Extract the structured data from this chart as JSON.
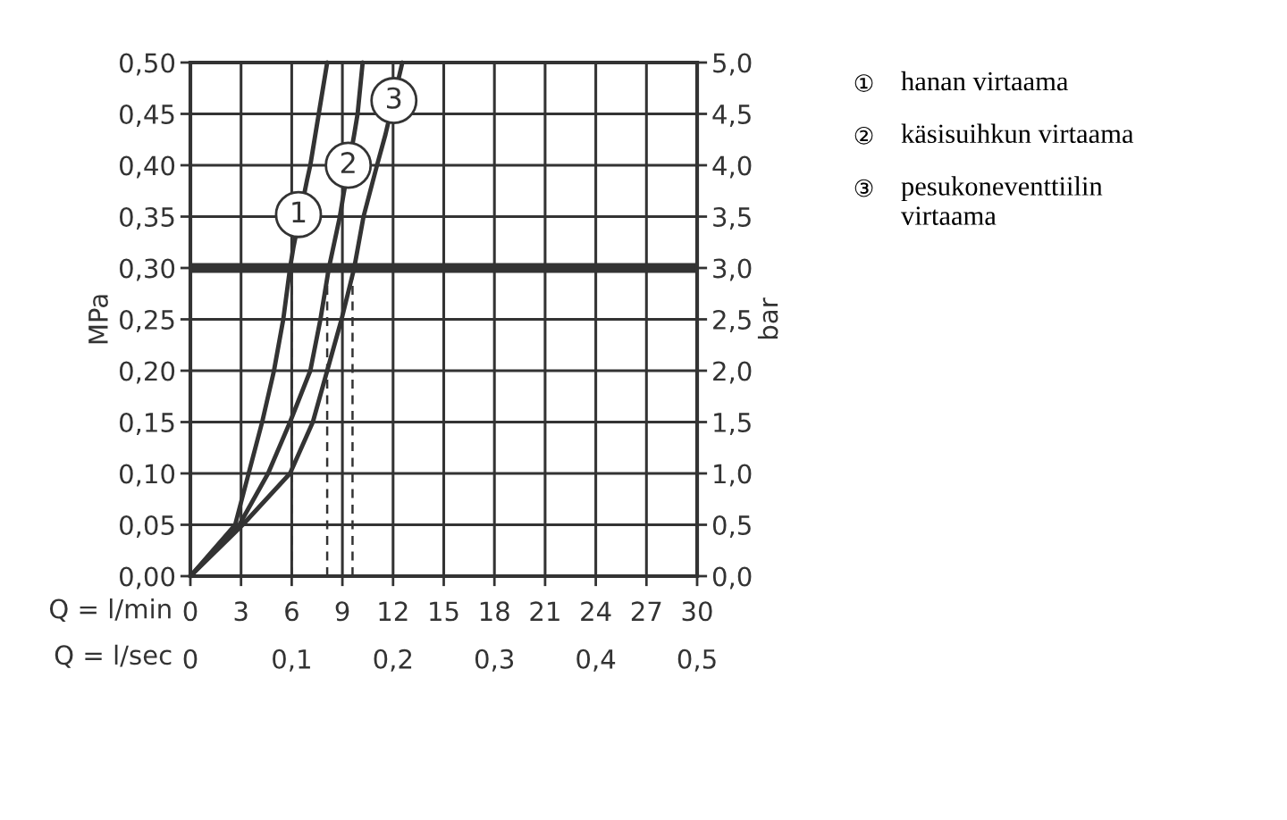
{
  "chart_data": {
    "type": "line",
    "series": [
      {
        "color": "#333333",
        "x": [
          0,
          2.65,
          3.45,
          4.25,
          4.95,
          5.5,
          5.9,
          6.1,
          6.9,
          7.1,
          7.6,
          8.1
        ],
        "values": [
          0,
          0.05,
          0.1,
          0.15,
          0.2,
          0.25,
          0.3,
          0.32,
          0.385,
          0.4,
          0.45,
          0.5
        ]
      },
      {
        "color": "#333333",
        "x": [
          0,
          2.9,
          4.6,
          5.9,
          7.1,
          7.7,
          8.2,
          8.85,
          9.05,
          9.7,
          9.9,
          10.2
        ],
        "values": [
          0,
          0.05,
          0.1,
          0.15,
          0.2,
          0.25,
          0.3,
          0.35,
          0.37,
          0.43,
          0.45,
          0.5
        ]
      },
      {
        "color": "#333333",
        "x": [
          0,
          3.1,
          5.9,
          7.25,
          8.1,
          8.95,
          9.7,
          10.25,
          11.05,
          11.55,
          12.55
        ],
        "values": [
          0,
          0.05,
          0.1,
          0.15,
          0.2,
          0.25,
          0.3,
          0.35,
          0.4,
          0.43,
          0.5
        ]
      },
      {
        "color": "#333333",
        "line_style": "dashed",
        "x": [
          6,
          6
        ],
        "values": [
          0,
          0.3
        ]
      },
      {
        "color": "#333333",
        "line_style": "dashed",
        "x": [
          8.1,
          8.1
        ],
        "values": [
          0,
          0.3
        ]
      },
      {
        "color": "#333333",
        "line_style": "dashed",
        "x": [
          9.6,
          9.6
        ],
        "values": [
          0,
          0.3
        ]
      }
    ],
    "xlim": [
      0,
      30
    ],
    "xticks": [
      0,
      3,
      6,
      9,
      12,
      15,
      18,
      21,
      24,
      27,
      30
    ],
    "xlabel": "Q = l/min",
    "x2lim": [
      0,
      0.5
    ],
    "x2ticks": [
      {
        "value": 0,
        "label": "0"
      },
      {
        "value": 0.1,
        "label": "0,1"
      },
      {
        "value": 0.2,
        "label": "0,2"
      },
      {
        "value": 0.3,
        "label": "0,3"
      },
      {
        "value": 0.4,
        "label": "0,4"
      },
      {
        "value": 0.5,
        "label": "0,5"
      }
    ],
    "x2label": "Q = l/sec",
    "ylim": [
      0,
      0.5
    ],
    "yticks": [
      {
        "value": 0,
        "label": "0,00"
      },
      {
        "value": 0.05,
        "label": "0,05"
      },
      {
        "value": 0.1,
        "label": "0,10"
      },
      {
        "value": 0.15,
        "label": "0,15"
      },
      {
        "value": 0.2,
        "label": "0,20"
      },
      {
        "value": 0.25,
        "label": "0,25"
      },
      {
        "value": 0.3,
        "label": "0,30"
      },
      {
        "value": 0.35,
        "label": "0,35"
      },
      {
        "value": 0.4,
        "label": "0,40"
      },
      {
        "value": 0.45,
        "label": "0,45"
      },
      {
        "value": 0.5,
        "label": "0,50"
      }
    ],
    "ylabel": "MPa",
    "y2lim": [
      0,
      5
    ],
    "y2ticks": [
      {
        "value": 0,
        "label": "0,0"
      },
      {
        "value": 0.5,
        "label": "0,5"
      },
      {
        "value": 1,
        "label": "1,0"
      },
      {
        "value": 1.5,
        "label": "1,5"
      },
      {
        "value": 2,
        "label": "2,0"
      },
      {
        "value": 2.5,
        "label": "2,5"
      },
      {
        "value": 3,
        "label": "3,0"
      },
      {
        "value": 3.5,
        "label": "3,5"
      },
      {
        "value": 4,
        "label": "4,0"
      },
      {
        "value": 4.5,
        "label": "4,5"
      },
      {
        "value": 5,
        "label": "5,0"
      }
    ],
    "y2label": "bar",
    "grid": true,
    "ref_lines": [
      {
        "axis": "y",
        "value": 0.3,
        "color": "#333333"
      }
    ],
    "annotations": [
      {
        "text": "1",
        "x": 6.4,
        "y": 0.352
      },
      {
        "text": "2",
        "x": 9.35,
        "y": 0.4
      },
      {
        "text": "3",
        "x": 12.05,
        "y": 0.463
      },
      "① hanan virtaama",
      "② käsisuihkun virtaama",
      "③ pesukoneventtiilin\nvirtaama"
    ]
  }
}
